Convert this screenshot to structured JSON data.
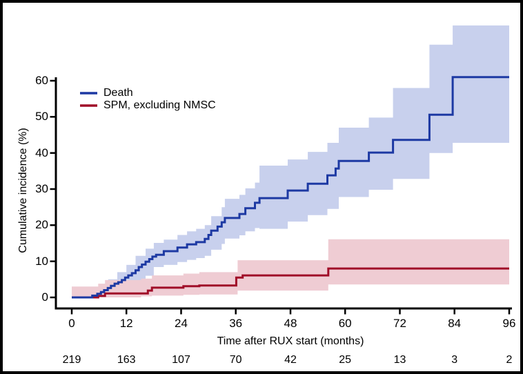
{
  "figure": {
    "background_color": "#ffffff",
    "frame_color": "#000000"
  },
  "chart_data": {
    "type": "line",
    "subtype": "cumulative-incidence-step-curves-with-confidence-bands",
    "title": "",
    "xlabel": "Time after RUX start (months)",
    "ylabel": "Cumulative incidence (%)",
    "xlim": [
      0,
      96
    ],
    "ylim": [
      0,
      60
    ],
    "x_ticks": [
      0,
      12,
      24,
      36,
      48,
      60,
      72,
      84,
      96
    ],
    "y_ticks": [
      0,
      10,
      20,
      30,
      40,
      50,
      60
    ],
    "grid": false,
    "legend_position": "inside-top-left",
    "axis_color": "#000000",
    "series": [
      {
        "name": "Death",
        "color": "#1d39a3",
        "band_color": "#c8d0ed",
        "steps_month_percent": [
          [
            0,
            0
          ],
          [
            3.8,
            0
          ],
          [
            4.5,
            0.5
          ],
          [
            5.6,
            1.0
          ],
          [
            6.4,
            1.5
          ],
          [
            7.1,
            2.0
          ],
          [
            7.9,
            2.6
          ],
          [
            8.6,
            3.2
          ],
          [
            9.4,
            3.8
          ],
          [
            10.2,
            4.2
          ],
          [
            11.0,
            4.8
          ],
          [
            11.7,
            5.5
          ],
          [
            12.4,
            6.1
          ],
          [
            13.2,
            6.7
          ],
          [
            14.0,
            7.5
          ],
          [
            14.7,
            8.4
          ],
          [
            15.4,
            9.1
          ],
          [
            16.2,
            9.9
          ],
          [
            17.0,
            10.6
          ],
          [
            17.7,
            11.3
          ],
          [
            18.5,
            11.8
          ],
          [
            20.2,
            12.8
          ],
          [
            23.2,
            13.8
          ],
          [
            25.3,
            14.7
          ],
          [
            27.3,
            15.3
          ],
          [
            29.2,
            16.2
          ],
          [
            30.0,
            17.3
          ],
          [
            30.6,
            18.5
          ],
          [
            32.0,
            19.6
          ],
          [
            32.9,
            20.8
          ],
          [
            33.6,
            22.0
          ],
          [
            36.8,
            23.1
          ],
          [
            38.1,
            24.7
          ],
          [
            40.2,
            26.2
          ],
          [
            41.2,
            27.5
          ],
          [
            47.4,
            29.6
          ],
          [
            51.8,
            31.5
          ],
          [
            56.1,
            33.8
          ],
          [
            57.9,
            35.7
          ],
          [
            58.6,
            37.8
          ],
          [
            65.2,
            40.1
          ],
          [
            70.5,
            43.6
          ],
          [
            78.5,
            50.6
          ],
          [
            83.6,
            61.0
          ]
        ],
        "ci_band_month_lower_upper": [
          [
            3.8,
            0,
            1.8
          ],
          [
            6.0,
            0,
            3.0
          ],
          [
            8.0,
            0.5,
            5.0
          ],
          [
            10.0,
            1.5,
            7.0
          ],
          [
            12.0,
            2.5,
            9.0
          ],
          [
            14.0,
            4.0,
            11.5
          ],
          [
            16.2,
            6.0,
            13.5
          ],
          [
            18.0,
            8.4,
            15.1
          ],
          [
            20.2,
            9.0,
            16.0
          ],
          [
            23.2,
            9.8,
            17.3
          ],
          [
            25.3,
            10.4,
            18.3
          ],
          [
            27.3,
            10.9,
            19.0
          ],
          [
            29.2,
            11.5,
            20.0
          ],
          [
            30.6,
            13.2,
            22.5
          ],
          [
            32.9,
            14.8,
            25.0
          ],
          [
            33.6,
            16.3,
            27.3
          ],
          [
            36.8,
            17.2,
            28.4
          ],
          [
            38.1,
            18.3,
            30.2
          ],
          [
            40.2,
            19.2,
            31.8
          ],
          [
            41.2,
            19.0,
            36.5
          ],
          [
            47.4,
            21.0,
            38.2
          ],
          [
            51.8,
            22.8,
            40.3
          ],
          [
            56.1,
            24.5,
            42.8
          ],
          [
            58.6,
            27.8,
            47.0
          ],
          [
            65.2,
            29.8,
            49.8
          ],
          [
            70.5,
            32.8,
            58.0
          ],
          [
            78.5,
            40.0,
            70.0
          ],
          [
            83.6,
            42.8,
            75.3
          ]
        ]
      },
      {
        "name": "SPM, excluding NMSC",
        "color": "#a00d28",
        "band_color": "#efccd3",
        "steps_month_percent": [
          [
            0,
            0
          ],
          [
            5.8,
            0.4
          ],
          [
            7.3,
            1.1
          ],
          [
            16.7,
            1.9
          ],
          [
            17.6,
            2.7
          ],
          [
            24.5,
            3.1
          ],
          [
            28.0,
            3.3
          ],
          [
            36.1,
            5.5
          ],
          [
            37.5,
            6.1
          ],
          [
            56.3,
            8.0
          ]
        ],
        "ci_band_month_lower_upper": [
          [
            0,
            0,
            3.0
          ],
          [
            5.8,
            0,
            3.8
          ],
          [
            7.3,
            0,
            4.8
          ],
          [
            15.2,
            0.3,
            5.2
          ],
          [
            17.6,
            0.5,
            6.1
          ],
          [
            24.5,
            0.7,
            6.6
          ],
          [
            28.0,
            0.8,
            7.0
          ],
          [
            36.4,
            1.9,
            10.3
          ],
          [
            56.3,
            3.6,
            16.1
          ]
        ]
      }
    ],
    "at_risk_row": {
      "months": [
        0,
        12,
        24,
        36,
        48,
        60,
        72,
        84,
        96
      ],
      "counts": [
        219,
        163,
        107,
        70,
        42,
        25,
        13,
        3,
        2
      ]
    }
  }
}
